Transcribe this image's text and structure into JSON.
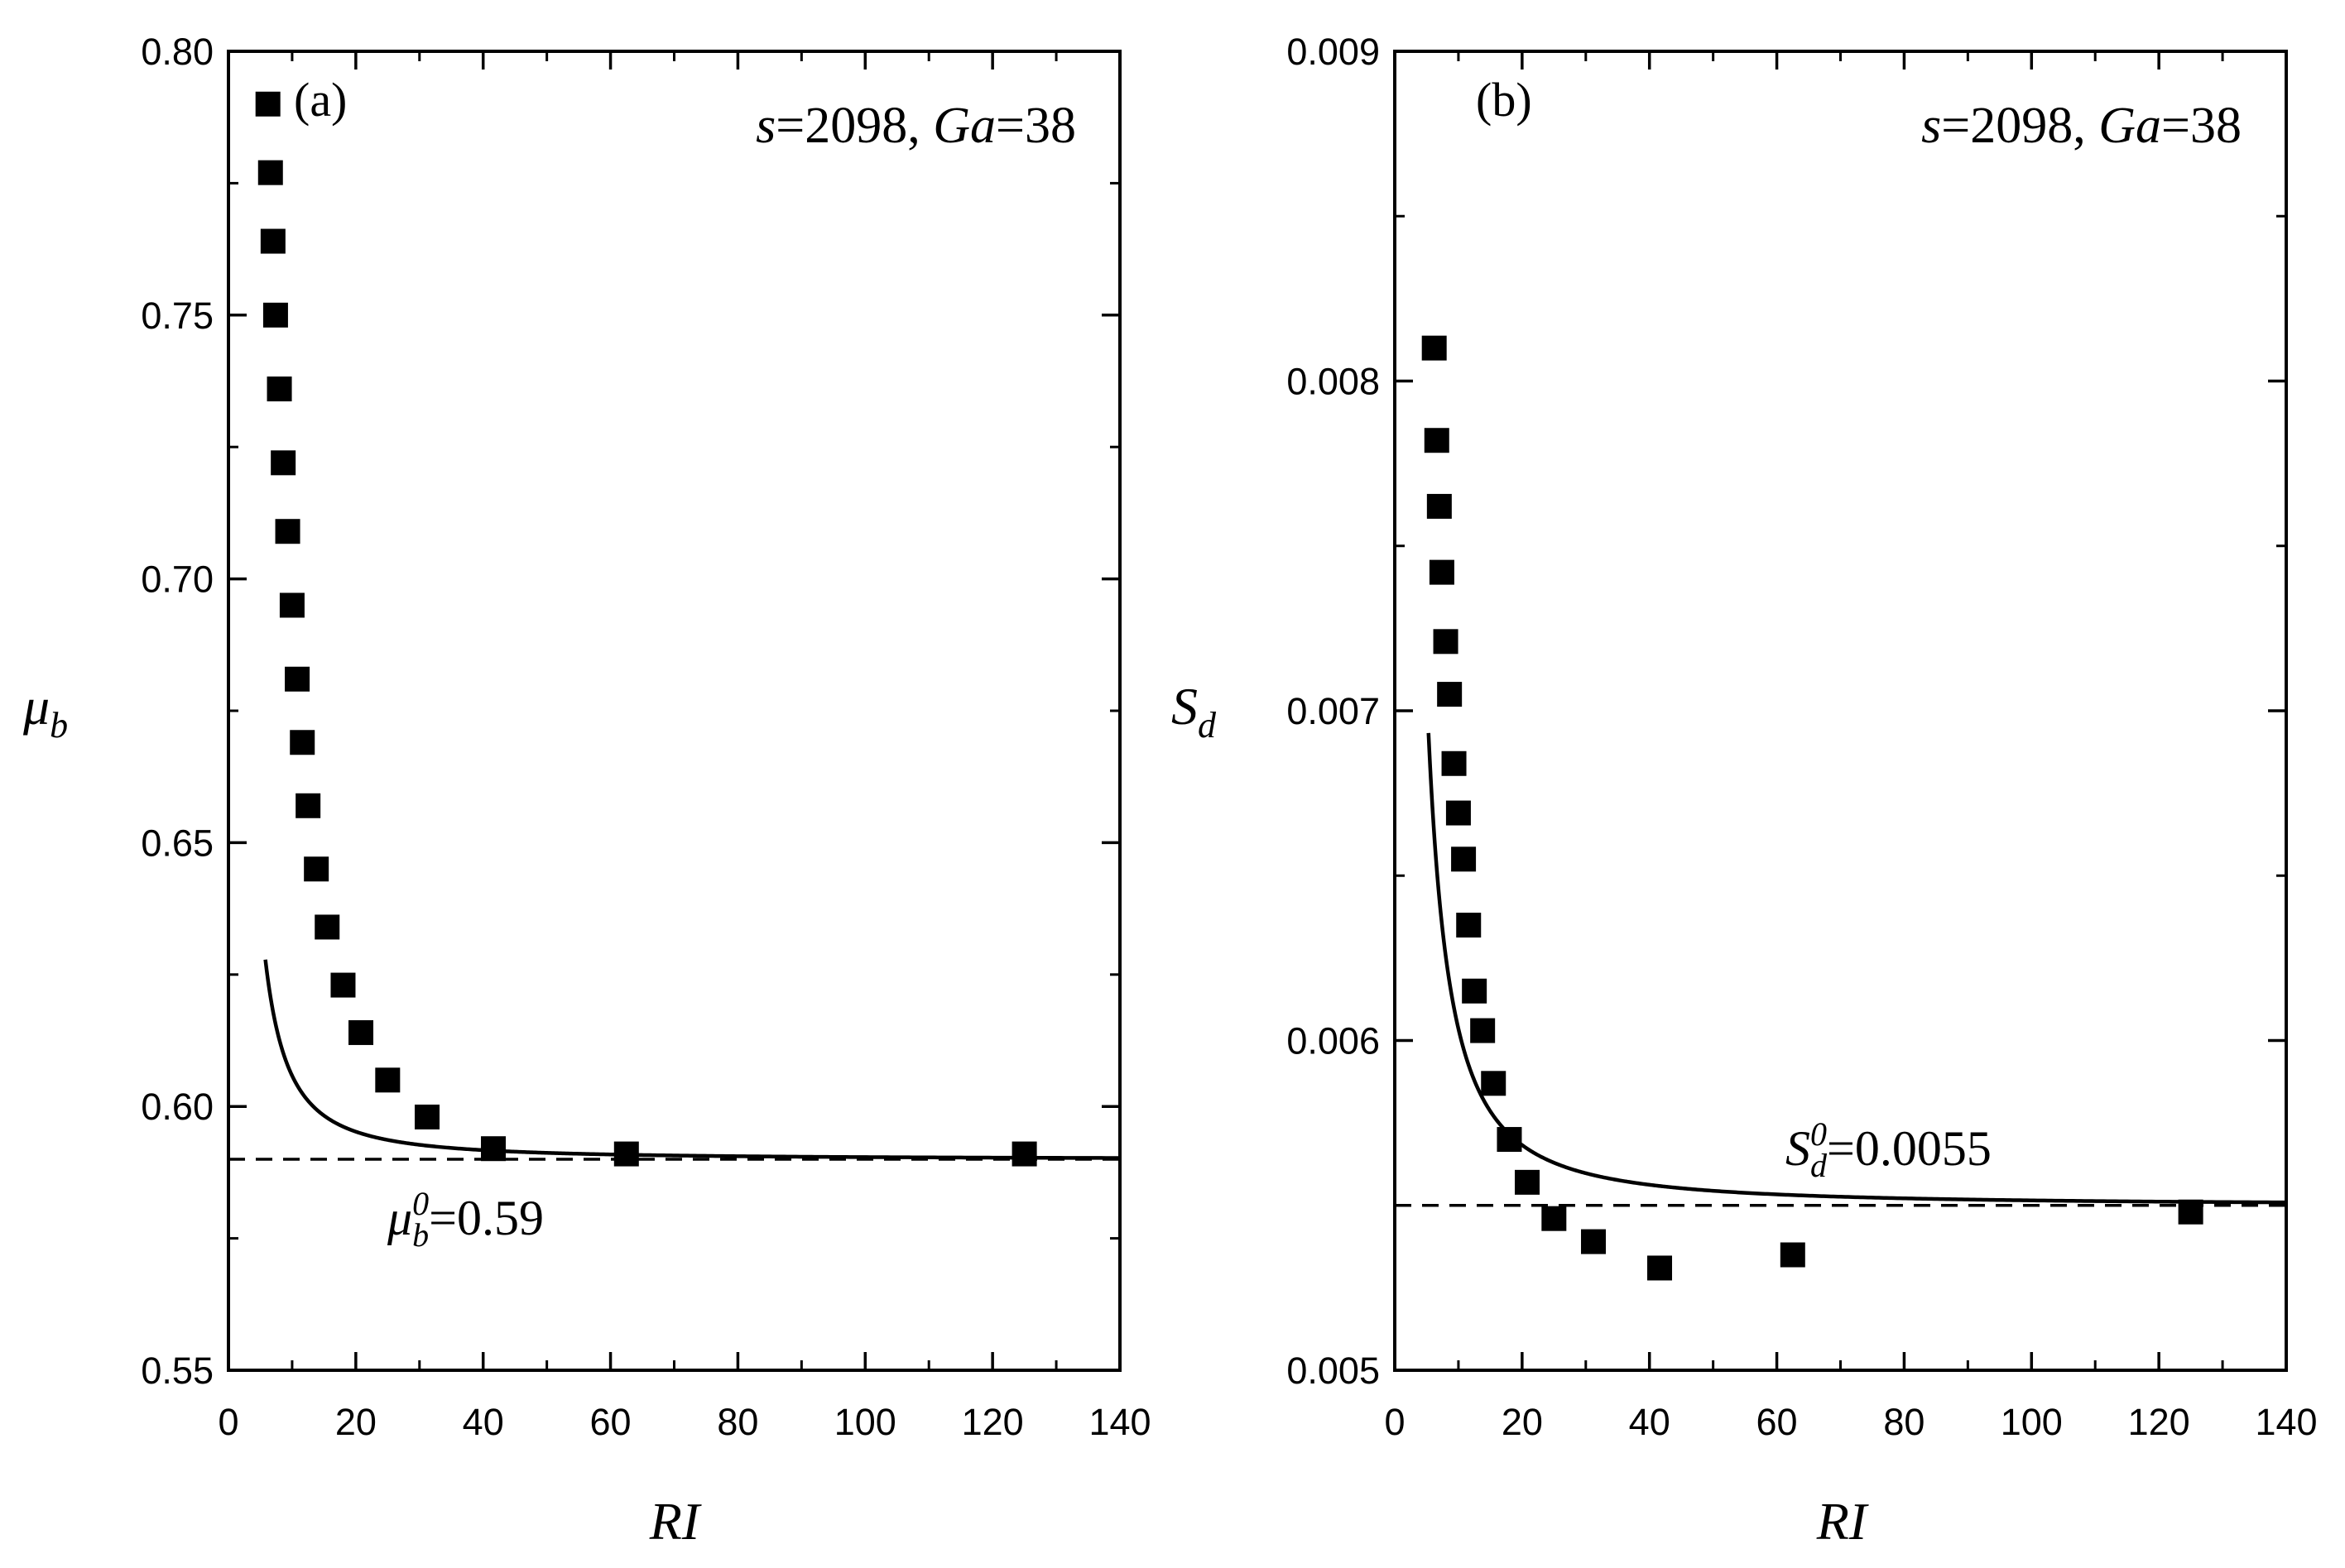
{
  "chart_data": [
    {
      "type": "scatter",
      "panel_label": "(a)",
      "annotation": {
        "s_symbol": "s",
        "s_value": "2098",
        "ga_symbol": "Ga",
        "ga_value": "38"
      },
      "xlabel": "RI",
      "ylabel": {
        "base": "μ",
        "sub": "b"
      },
      "xlim": [
        0,
        140
      ],
      "ylim": [
        0.55,
        0.8
      ],
      "xticks": [
        "0",
        "20",
        "40",
        "60",
        "80",
        "100",
        "120",
        "140"
      ],
      "yticks": [
        "0.55",
        "0.60",
        "0.65",
        "0.70",
        "0.75",
        "0.80"
      ],
      "asymptote": {
        "value": 0.59,
        "base": "μ",
        "sub": "b",
        "sup": "0",
        "text": "=0.59"
      },
      "series": [
        {
          "name": "data",
          "x": [
            6.2,
            6.6,
            7.0,
            7.4,
            8.0,
            8.6,
            9.3,
            10.0,
            10.8,
            11.6,
            12.5,
            13.8,
            15.5,
            18.0,
            20.8,
            25.0,
            31.2,
            41.6,
            62.5,
            125.0
          ],
          "y": [
            0.79,
            0.777,
            0.764,
            0.75,
            0.736,
            0.722,
            0.709,
            0.695,
            0.681,
            0.669,
            0.657,
            0.645,
            0.634,
            0.623,
            0.614,
            0.605,
            0.598,
            0.592,
            0.591,
            0.591
          ]
        },
        {
          "name": "fit",
          "type": "line",
          "x0": 5.8,
          "model": {
            "asymptote": 0.59,
            "coef": 0.63,
            "power": 1.6
          }
        }
      ]
    },
    {
      "type": "scatter",
      "panel_label": "(b)",
      "annotation": {
        "s_symbol": "s",
        "s_value": "2098",
        "ga_symbol": "Ga",
        "ga_value": "38"
      },
      "xlabel": "RI",
      "ylabel": {
        "base": "S",
        "sub": "d"
      },
      "xlim": [
        0,
        140
      ],
      "ylim": [
        0.005,
        0.009
      ],
      "xticks": [
        "0",
        "20",
        "40",
        "60",
        "80",
        "100",
        "120",
        "140"
      ],
      "yticks": [
        "0.005",
        "0.006",
        "0.007",
        "0.008",
        "0.009"
      ],
      "asymptote": {
        "value": 0.0055,
        "base": "S",
        "sub": "d",
        "sup": "0",
        "text": "=0.0055"
      },
      "series": [
        {
          "name": "data",
          "x": [
            6.2,
            6.6,
            7.0,
            7.4,
            8.0,
            8.6,
            9.3,
            10.0,
            10.8,
            11.6,
            12.5,
            13.8,
            15.5,
            18.0,
            20.8,
            25.0,
            31.2,
            41.6,
            62.5,
            125.0
          ],
          "y": [
            0.0081,
            0.00782,
            0.00762,
            0.00742,
            0.00721,
            0.00705,
            0.00684,
            0.00669,
            0.00655,
            0.00635,
            0.00615,
            0.00603,
            0.00587,
            0.0057,
            0.00557,
            0.00546,
            0.00539,
            0.00531,
            0.00535,
            0.00548
          ]
        },
        {
          "name": "fit",
          "type": "line",
          "x0": 5.3,
          "model": {
            "asymptote": 0.0055,
            "coef": 0.019,
            "power": 1.55
          }
        }
      ]
    }
  ]
}
